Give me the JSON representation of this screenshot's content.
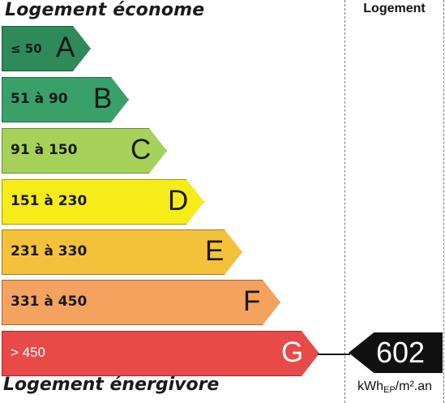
{
  "header": {
    "top_label": "Logement économe",
    "bottom_label": "Logement énergivore",
    "column_title": "Logement"
  },
  "classes": [
    {
      "letter": "A",
      "range": "≤ 50",
      "color": "#2e8a5a",
      "text_color": "#1a1a1a"
    },
    {
      "letter": "B",
      "range": "51 à 90",
      "color": "#3aa06a",
      "text_color": "#1a1a1a"
    },
    {
      "letter": "C",
      "range": "91 à 150",
      "color": "#a6d25a",
      "text_color": "#1a1a1a"
    },
    {
      "letter": "D",
      "range": "151 à 230",
      "color": "#f5ec1a",
      "text_color": "#1a1a1a"
    },
    {
      "letter": "E",
      "range": "231 à 330",
      "color": "#f4c23a",
      "text_color": "#1a1a1a"
    },
    {
      "letter": "F",
      "range": "331 à 450",
      "color": "#f3a35e",
      "text_color": "#1a1a1a"
    },
    {
      "letter": "G",
      "range": "> 450",
      "color": "#e84a48",
      "text_color": "#ffffff"
    }
  ],
  "result": {
    "value": "602",
    "unit_main": "kWh",
    "unit_sub": "EP",
    "unit_rest": "/m².an",
    "class": "G"
  }
}
